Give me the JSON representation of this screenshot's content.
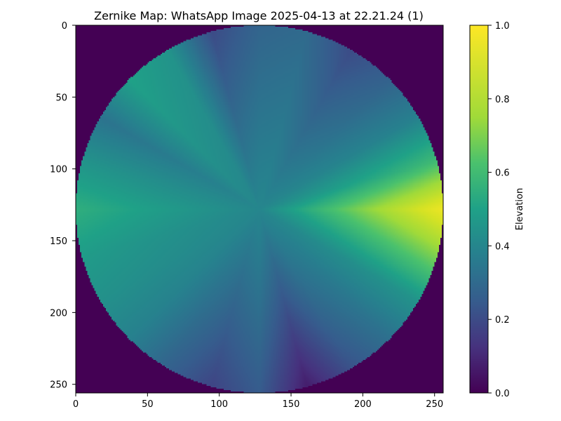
{
  "chart_data": {
    "type": "heatmap",
    "title": "Zernike Map: WhatsApp Image 2025-04-13 at 22.21.24 (1)",
    "xlabel": "",
    "ylabel": "",
    "xlim": [
      0,
      256
    ],
    "ylim": [
      256,
      0
    ],
    "grid": false,
    "x_ticks": [
      {
        "value": 0,
        "label": "0"
      },
      {
        "value": 50,
        "label": "50"
      },
      {
        "value": 100,
        "label": "100"
      },
      {
        "value": 150,
        "label": "150"
      },
      {
        "value": 200,
        "label": "200"
      },
      {
        "value": 250,
        "label": "250"
      }
    ],
    "y_ticks": [
      {
        "value": 0,
        "label": "0"
      },
      {
        "value": 50,
        "label": "50"
      },
      {
        "value": 100,
        "label": "100"
      },
      {
        "value": 150,
        "label": "150"
      },
      {
        "value": 200,
        "label": "200"
      },
      {
        "value": 250,
        "label": "250"
      }
    ],
    "colormap": "viridis",
    "colorbar": {
      "label": "Elevation",
      "range": [
        0.0,
        1.0
      ],
      "ticks": [
        {
          "value": 0.0,
          "label": "0.0"
        },
        {
          "value": 0.2,
          "label": "0.2"
        },
        {
          "value": 0.4,
          "label": "0.4"
        },
        {
          "value": 0.6,
          "label": "0.6"
        },
        {
          "value": 0.8,
          "label": "0.8"
        },
        {
          "value": 1.0,
          "label": "1.0"
        }
      ]
    },
    "image_size": [
      256,
      256
    ],
    "aperture": {
      "center": [
        128,
        128
      ],
      "radius": 128,
      "outside_value": 0.0
    },
    "angular_profile": {
      "angle_deg": [
        0,
        15,
        30,
        45,
        60,
        75,
        90,
        105,
        120,
        135,
        150,
        165,
        180,
        195,
        210,
        225,
        240,
        255,
        270,
        285,
        300,
        315,
        330,
        345
      ],
      "rim_value": [
        0.95,
        0.6,
        0.38,
        0.27,
        0.2,
        0.3,
        0.28,
        0.2,
        0.45,
        0.5,
        0.33,
        0.45,
        0.55,
        0.48,
        0.44,
        0.38,
        0.27,
        0.18,
        0.25,
        0.07,
        0.22,
        0.32,
        0.45,
        0.7
      ]
    },
    "center_value": 0.4,
    "colors": {
      "viridis_0": "#440154",
      "viridis_25": "#3b528b",
      "viridis_50": "#21918c",
      "viridis_75": "#5ec962",
      "viridis_100": "#fde725"
    }
  }
}
